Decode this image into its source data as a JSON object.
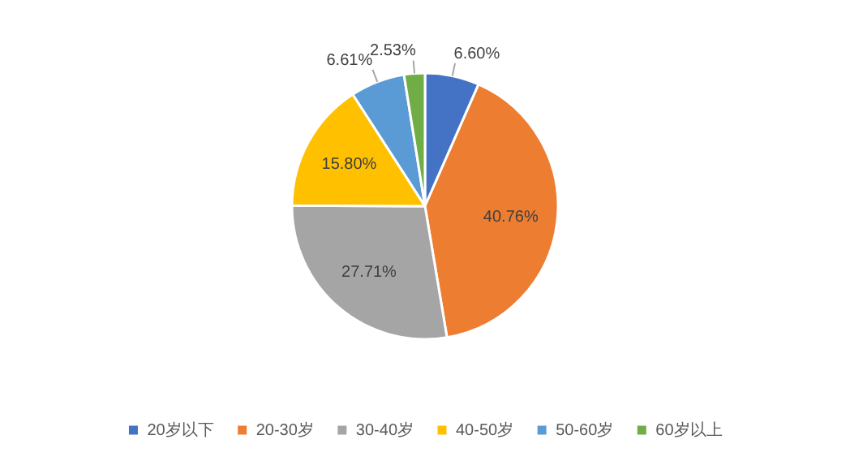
{
  "chart_data": {
    "type": "pie",
    "categories": [
      "20岁以下",
      "20-30岁",
      "30-40岁",
      "40-50岁",
      "50-60岁",
      "60岁以上"
    ],
    "values": [
      6.6,
      40.76,
      27.71,
      15.8,
      6.61,
      2.53
    ],
    "colors": [
      "#4472c4",
      "#ed7d31",
      "#a5a5a5",
      "#ffc000",
      "#5b9bd5",
      "#70ad47"
    ],
    "value_labels": [
      "6.60%",
      "40.76%",
      "27.71%",
      "15.80%",
      "6.61%",
      "2.53%"
    ],
    "legend": "bottom"
  }
}
